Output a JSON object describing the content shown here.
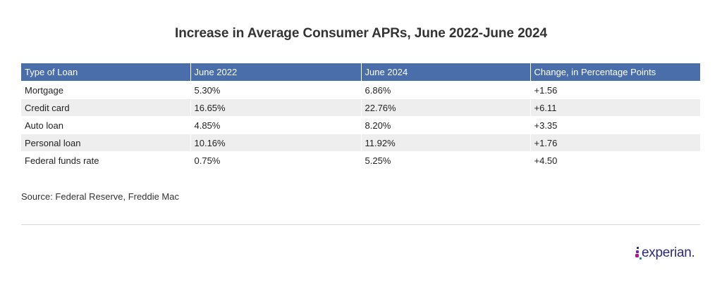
{
  "chart_data": {
    "type": "table",
    "title": "Increase in Average Consumer APRs, June 2022-June 2024",
    "columns": [
      "Type of Loan",
      "June 2022",
      "June 2024",
      "Change, in Percentage Points"
    ],
    "rows": [
      [
        "Mortgage",
        "5.30%",
        "6.86%",
        "+1.56"
      ],
      [
        "Credit card",
        "16.65%",
        "22.76%",
        "+6.11"
      ],
      [
        "Auto loan",
        "4.85%",
        "8.20%",
        "+3.35"
      ],
      [
        "Personal loan",
        "10.16%",
        "11.92%",
        "+1.76"
      ],
      [
        "Federal funds rate",
        "0.75%",
        "5.25%",
        "+4.50"
      ]
    ],
    "source": "Source: Federal Reserve, Freddie Mac"
  },
  "logo": {
    "brand": "experian."
  },
  "colors": {
    "header_bg": "#4a6ea9",
    "stripe_bg": "#eeeeee",
    "brand_navy": "#2c2a76",
    "brand_magenta": "#b5168f",
    "brand_purple": "#6f2b8f"
  }
}
